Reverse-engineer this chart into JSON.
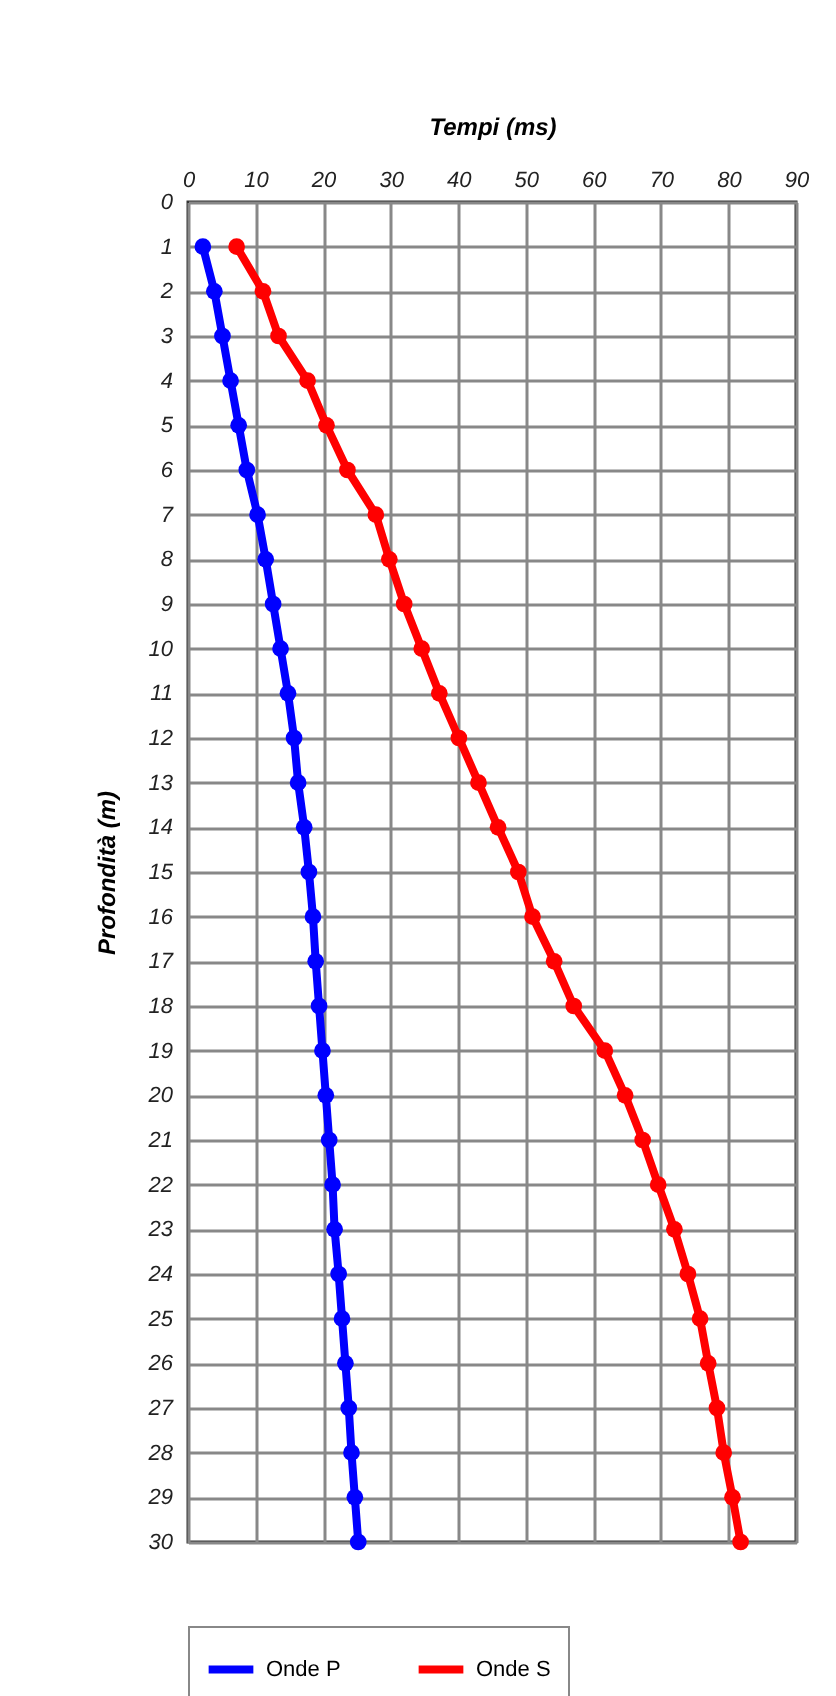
{
  "chart_data": {
    "type": "line",
    "xlabel": "Tempi (ms)",
    "ylabel": "Profondità (m)",
    "xlim": [
      0,
      90
    ],
    "xticks": [
      0,
      10,
      20,
      30,
      40,
      50,
      60,
      70,
      80,
      90
    ],
    "ylim": [
      30,
      0
    ],
    "yticks": [
      0,
      1,
      2,
      3,
      4,
      5,
      6,
      7,
      8,
      9,
      10,
      11,
      12,
      13,
      14,
      15,
      16,
      17,
      18,
      19,
      20,
      21,
      22,
      23,
      24,
      25,
      26,
      27,
      28,
      29,
      30
    ],
    "grid": true,
    "legend": "bottom",
    "marker": "circle",
    "line_style": "solid",
    "series": [
      {
        "name": "Onde P",
        "color": "#0000ff",
        "x": [
          2.2,
          3.9,
          5.1,
          6.3,
          7.5,
          8.7,
          10.3,
          11.5,
          12.6,
          13.7,
          14.8,
          15.7,
          16.3,
          17.2,
          17.9,
          18.5,
          18.9,
          19.4,
          19.9,
          20.4,
          20.9,
          21.4,
          21.7,
          22.3,
          22.8,
          23.3,
          23.8,
          24.2,
          24.7,
          25.2
        ],
        "values": [
          1,
          2,
          3,
          4,
          5,
          6,
          7,
          8,
          9,
          10,
          11,
          12,
          13,
          14,
          15,
          16,
          17,
          18,
          19,
          20,
          21,
          22,
          23,
          24,
          25,
          26,
          27,
          28,
          29,
          30
        ]
      },
      {
        "name": "Onde S",
        "color": "#ff0000",
        "x": [
          7.2,
          11.1,
          13.4,
          17.7,
          20.5,
          23.6,
          27.8,
          29.8,
          32.0,
          34.6,
          37.2,
          40.1,
          43.0,
          45.9,
          48.9,
          51.0,
          54.2,
          57.1,
          61.7,
          64.7,
          67.3,
          69.6,
          72.0,
          74.0,
          75.8,
          77.0,
          78.3,
          79.3,
          80.6,
          81.8
        ],
        "values": [
          1,
          2,
          3,
          4,
          5,
          6,
          7,
          8,
          9,
          10,
          11,
          12,
          13,
          14,
          15,
          16,
          17,
          18,
          19,
          20,
          21,
          22,
          23,
          24,
          25,
          26,
          27,
          28,
          29,
          30
        ]
      }
    ]
  }
}
